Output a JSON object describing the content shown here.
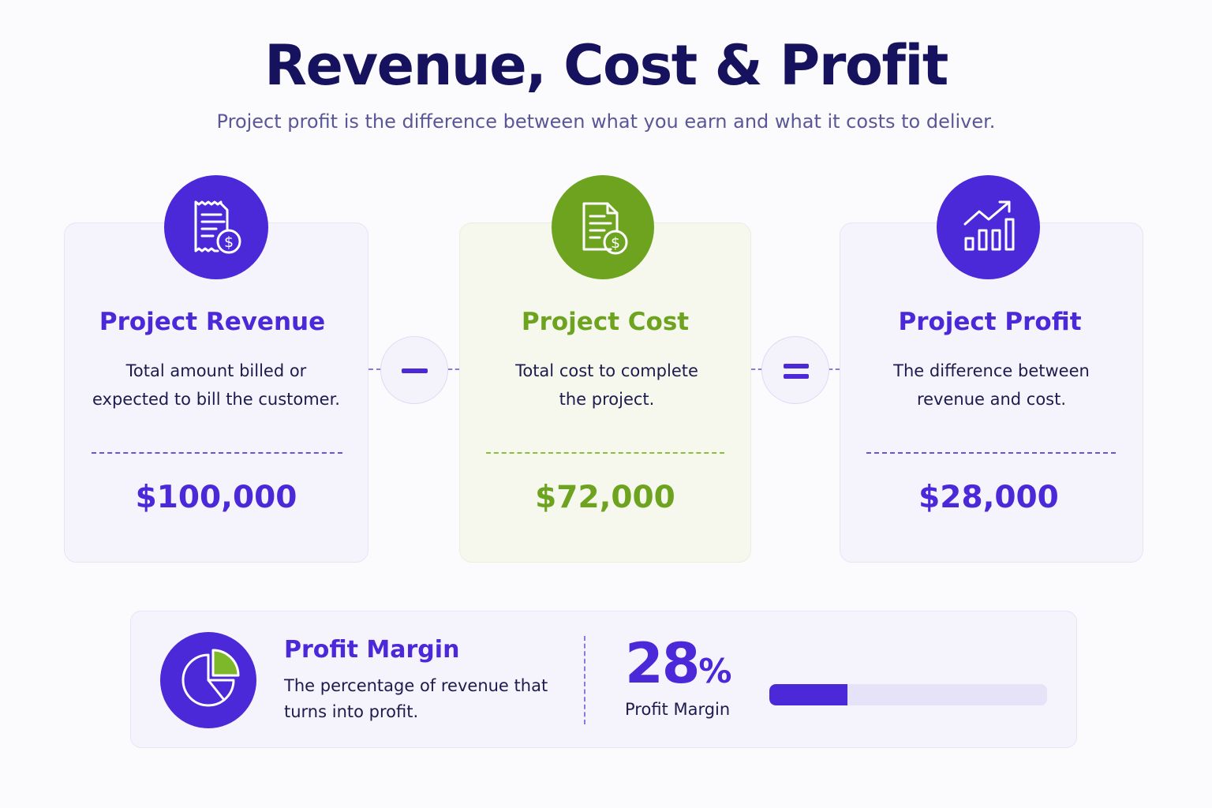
{
  "header": {
    "title": "Revenue, Cost & Profit",
    "subtitle": "Project profit is the difference between what you earn and what it costs to deliver."
  },
  "colors": {
    "primary": "#4b28d8",
    "green": "#6da31f",
    "title": "#16125e"
  },
  "cards": [
    {
      "icon": "receipt-dollar-icon",
      "title": "Project Revenue",
      "desc_line1": "Total amount billed or",
      "desc_line2": "expected to bill the customer.",
      "value": "$100,000"
    },
    {
      "icon": "document-dollar-icon",
      "title": "Project Cost",
      "desc_line1": "Total cost to complete",
      "desc_line2": "the project.",
      "value": "$72,000"
    },
    {
      "icon": "growth-chart-icon",
      "title": "Project Profit",
      "desc_line1": "The difference between",
      "desc_line2": "revenue and cost.",
      "value": "$28,000"
    }
  ],
  "operators": [
    "minus-icon",
    "equals-icon"
  ],
  "margin": {
    "icon": "pie-chart-icon",
    "title": "Profit Margin",
    "desc_line1": "The percentage of revenue that",
    "desc_line2": "turns into profit.",
    "value": "28",
    "unit": "%",
    "label": "Profit Margin",
    "progress": 0.28
  }
}
